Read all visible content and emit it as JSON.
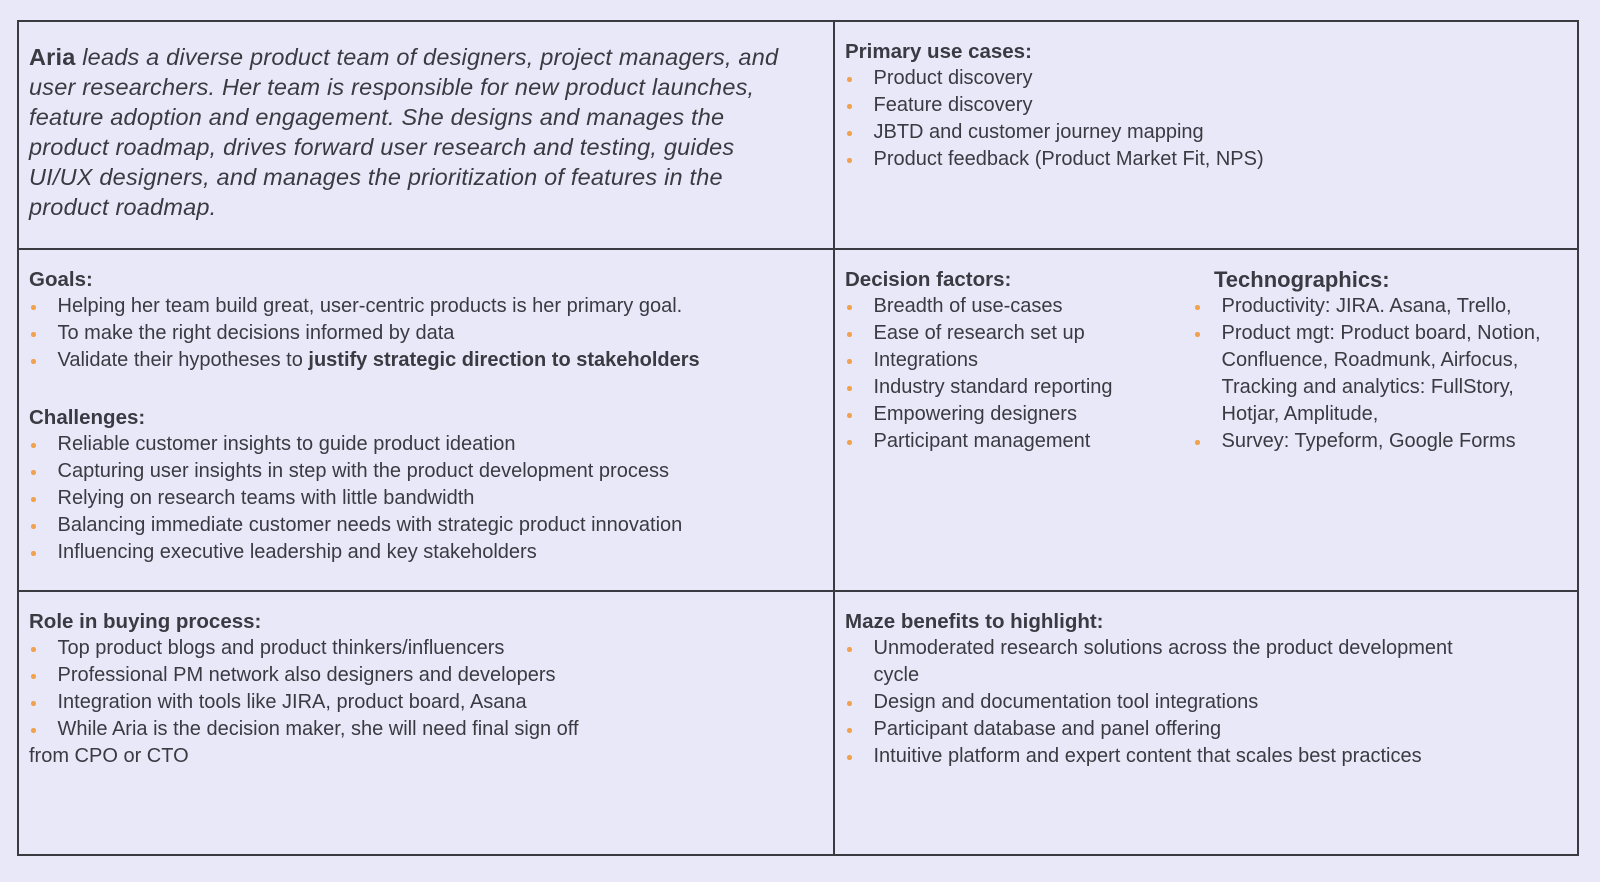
{
  "theme": {
    "background": "#E9E8F8",
    "border_color": "#3A3A40",
    "text_color": "#3A3A42",
    "bullet_color": "#F0A24F"
  },
  "intro": {
    "name": "Aria",
    "description": "leads a diverse product team of designers, project managers, and user researchers. Her team is responsible for new product launches, feature adoption and engagement. She designs and manages the product roadmap, drives forward user research and testing, guides UI/UX designers, and manages the prioritization of features in the product roadmap."
  },
  "primary_use_cases": {
    "heading": "Primary use cases:",
    "items": [
      "Product discovery",
      "Feature discovery",
      "JBTD and customer journey mapping",
      "Product feedback (Product Market Fit, NPS)"
    ]
  },
  "goals": {
    "heading": "Goals:",
    "items": [
      "Helping her team build great, user-centric products is her primary goal.",
      "To make the right decisions informed by data",
      {
        "parts": [
          {
            "t": "Validate their hypotheses to "
          },
          {
            "t": "justify strategic direction to stakeholders",
            "b": true
          }
        ]
      }
    ]
  },
  "challenges": {
    "heading": "Challenges:",
    "items": [
      "Reliable customer insights to guide product ideation",
      "Capturing user insights in step with the product development process",
      "Relying on research teams with little bandwidth",
      "Balancing immediate customer needs with strategic product innovation",
      "Influencing executive leadership and key stakeholders"
    ]
  },
  "decision_factors": {
    "heading": "Decision factors:",
    "items": [
      "Breadth of use-cases",
      "Ease of research set up",
      "Integrations",
      "Industry standard reporting",
      "Empowering designers",
      "Participant management"
    ]
  },
  "technographics": {
    "heading": "Technographics:",
    "items": [
      "Productivity: JIRA. Asana, Trello,",
      "Product mgt: Product board, Notion, Confluence, Roadmunk, Airfocus, Tracking and analytics: FullStory, Hotjar, Amplitude,",
      "Survey: Typeform, Google Forms"
    ]
  },
  "role_in_buying": {
    "heading": "Role in buying process:",
    "items": [
      "Top product blogs and product thinkers/influencers",
      "Professional PM network also designers and developers",
      "Integration with tools like JIRA, product board, Asana",
      "While Aria is the decision maker, she will need final sign off"
    ],
    "footnote": "from CPO or CTO"
  },
  "maze_benefits": {
    "heading": "Maze benefits to highlight:",
    "items": [
      "Unmoderated research solutions across the product development cycle",
      "Design and documentation tool integrations",
      "Participant database and panel offering",
      "Intuitive platform and expert content that scales best practices"
    ]
  }
}
